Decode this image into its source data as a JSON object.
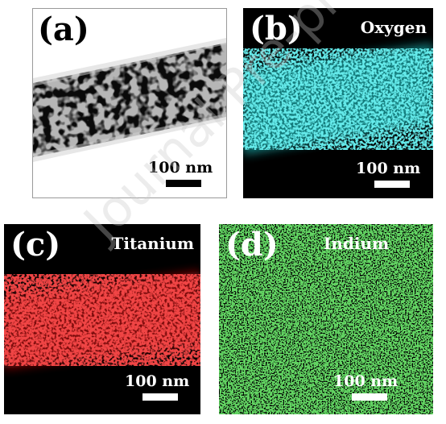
{
  "panels": {
    "a": {
      "label": "(a)",
      "scalebar": "100 nm"
    },
    "b": {
      "label": "(b)",
      "element": "Oxygen",
      "scalebar": "100 nm",
      "color": "#22d3d3"
    },
    "c": {
      "label": "(c)",
      "element": "Titanium",
      "scalebar": "100 nm",
      "color": "#e01010"
    },
    "d": {
      "label": "(d)",
      "element": "Indium",
      "scalebar": "100 nm",
      "color": "#22b422"
    }
  },
  "watermark": "Journal Pre-proof"
}
